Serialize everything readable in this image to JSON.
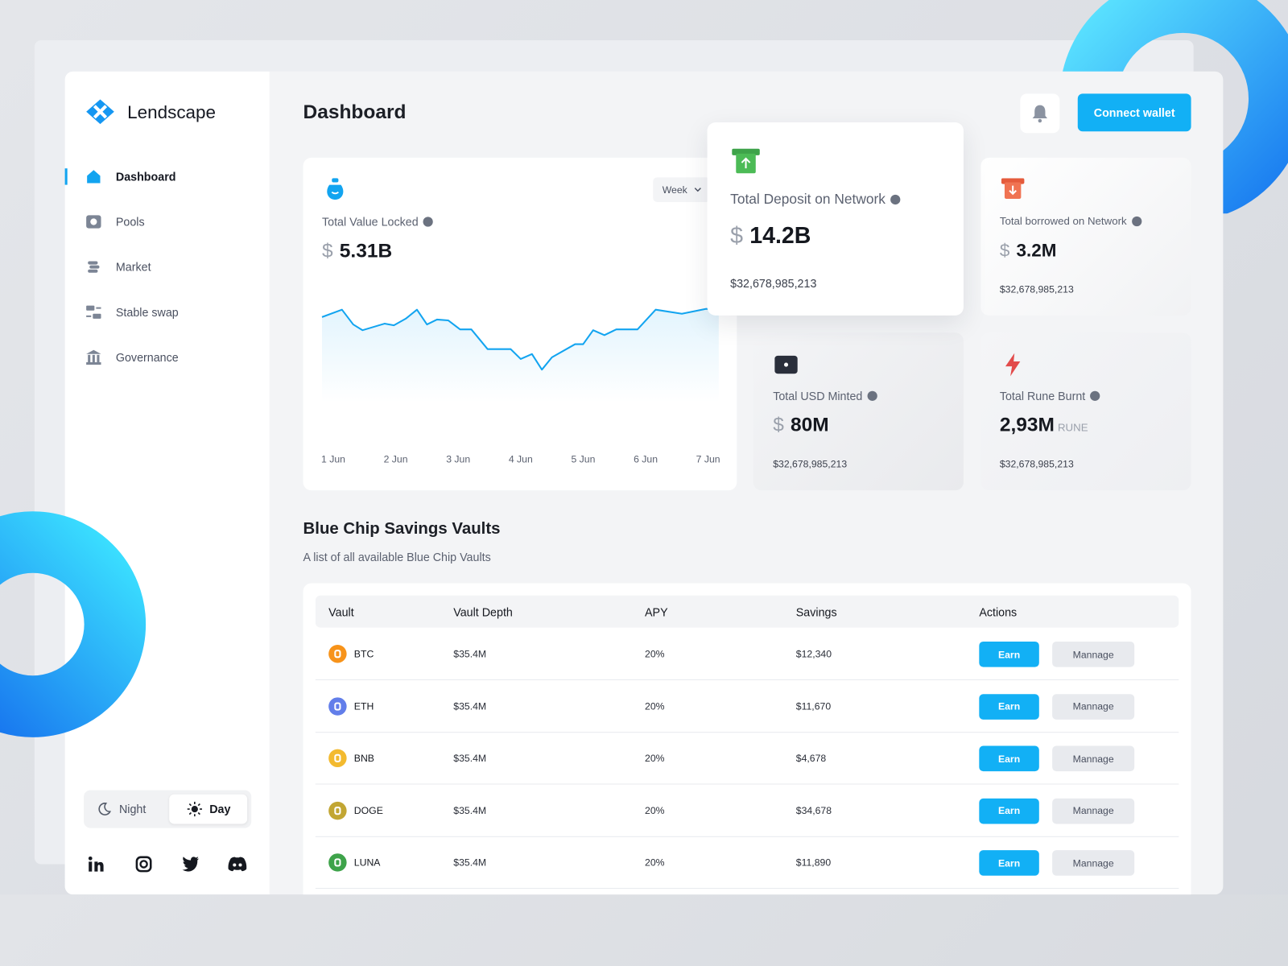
{
  "sidebar": {
    "brand": "Lendscape",
    "nav": [
      "Dashboard",
      "Pools",
      "Market",
      "Stable swap",
      "Governance"
    ],
    "theme": [
      "Night",
      "Day"
    ]
  },
  "header": {
    "title": "Dashboard",
    "button": "Connect wallet"
  },
  "stats": [
    {
      "label": "Total Value Locked",
      "currency": "$",
      "value": "5.31B",
      "period": "Week"
    },
    {
      "label": "Total Deposit on Network",
      "currency": "$",
      "value": "14.2B",
      "sub": "$32,678,985,213"
    },
    {
      "label": "Total borrowed on Network",
      "currency": "$",
      "value": "3.2M",
      "sub": "$32,678,985,213"
    },
    {
      "label": "Total USD Minted",
      "currency": "$",
      "value": "80M",
      "sub": "$32,678,985,213"
    },
    {
      "label": "Total Rune Burnt",
      "value": "2,93M",
      "unit": "RUNE",
      "sub": "$32,678,985,213"
    }
  ],
  "tvl_chart": {
    "type": "line",
    "color": "#12a4f0",
    "x": [
      0.82,
      1.14,
      1.32,
      1.47,
      1.82,
      1.97,
      2.16,
      2.34,
      2.5,
      2.66,
      2.84,
      3.03,
      3.21,
      3.47,
      3.84,
      4.0,
      4.18,
      4.34,
      4.5,
      4.87,
      5.0,
      5.16,
      5.34,
      5.53,
      5.87,
      6.16,
      6.58,
      6.97,
      7.17
    ],
    "values": [
      94,
      103,
      85,
      78,
      86,
      84,
      92,
      103,
      85,
      91,
      90,
      79,
      79,
      55,
      55,
      43,
      49,
      30,
      45,
      61,
      61,
      78,
      72,
      79,
      79,
      103,
      98,
      104,
      103
    ],
    "xlim": [
      0.82,
      7.17
    ],
    "ylim": [
      0,
      150
    ],
    "xticks": [
      {
        "value": 1,
        "label": "1 Jun"
      },
      {
        "value": 2,
        "label": "2 Jun"
      },
      {
        "value": 3,
        "label": "3 Jun"
      },
      {
        "value": 4,
        "label": "4 Jun"
      },
      {
        "value": 5,
        "label": "5 Jun"
      },
      {
        "value": 6,
        "label": "6 Jun"
      },
      {
        "value": 7,
        "label": "7 Jun"
      }
    ]
  },
  "vaults": {
    "title": "Blue Chip Savings Vaults",
    "subtitle": "A list of all available Blue Chip Vaults",
    "columns": [
      "Vault",
      "Vault Depth",
      "APY",
      "Savings",
      "Actions"
    ],
    "rows": [
      [
        "BTC",
        "$35.4M",
        "20%",
        "$12,340"
      ],
      [
        "ETH",
        "$35.4M",
        "20%",
        "$11,670"
      ],
      [
        "BNB",
        "$35.4M",
        "20%",
        "$4,678"
      ],
      [
        "DOGE",
        "$35.4M",
        "20%",
        "$34,678"
      ],
      [
        "LUNA",
        "$35.4M",
        "20%",
        "$11,890"
      ]
    ],
    "actions": [
      "Earn",
      "Mannage"
    ]
  }
}
